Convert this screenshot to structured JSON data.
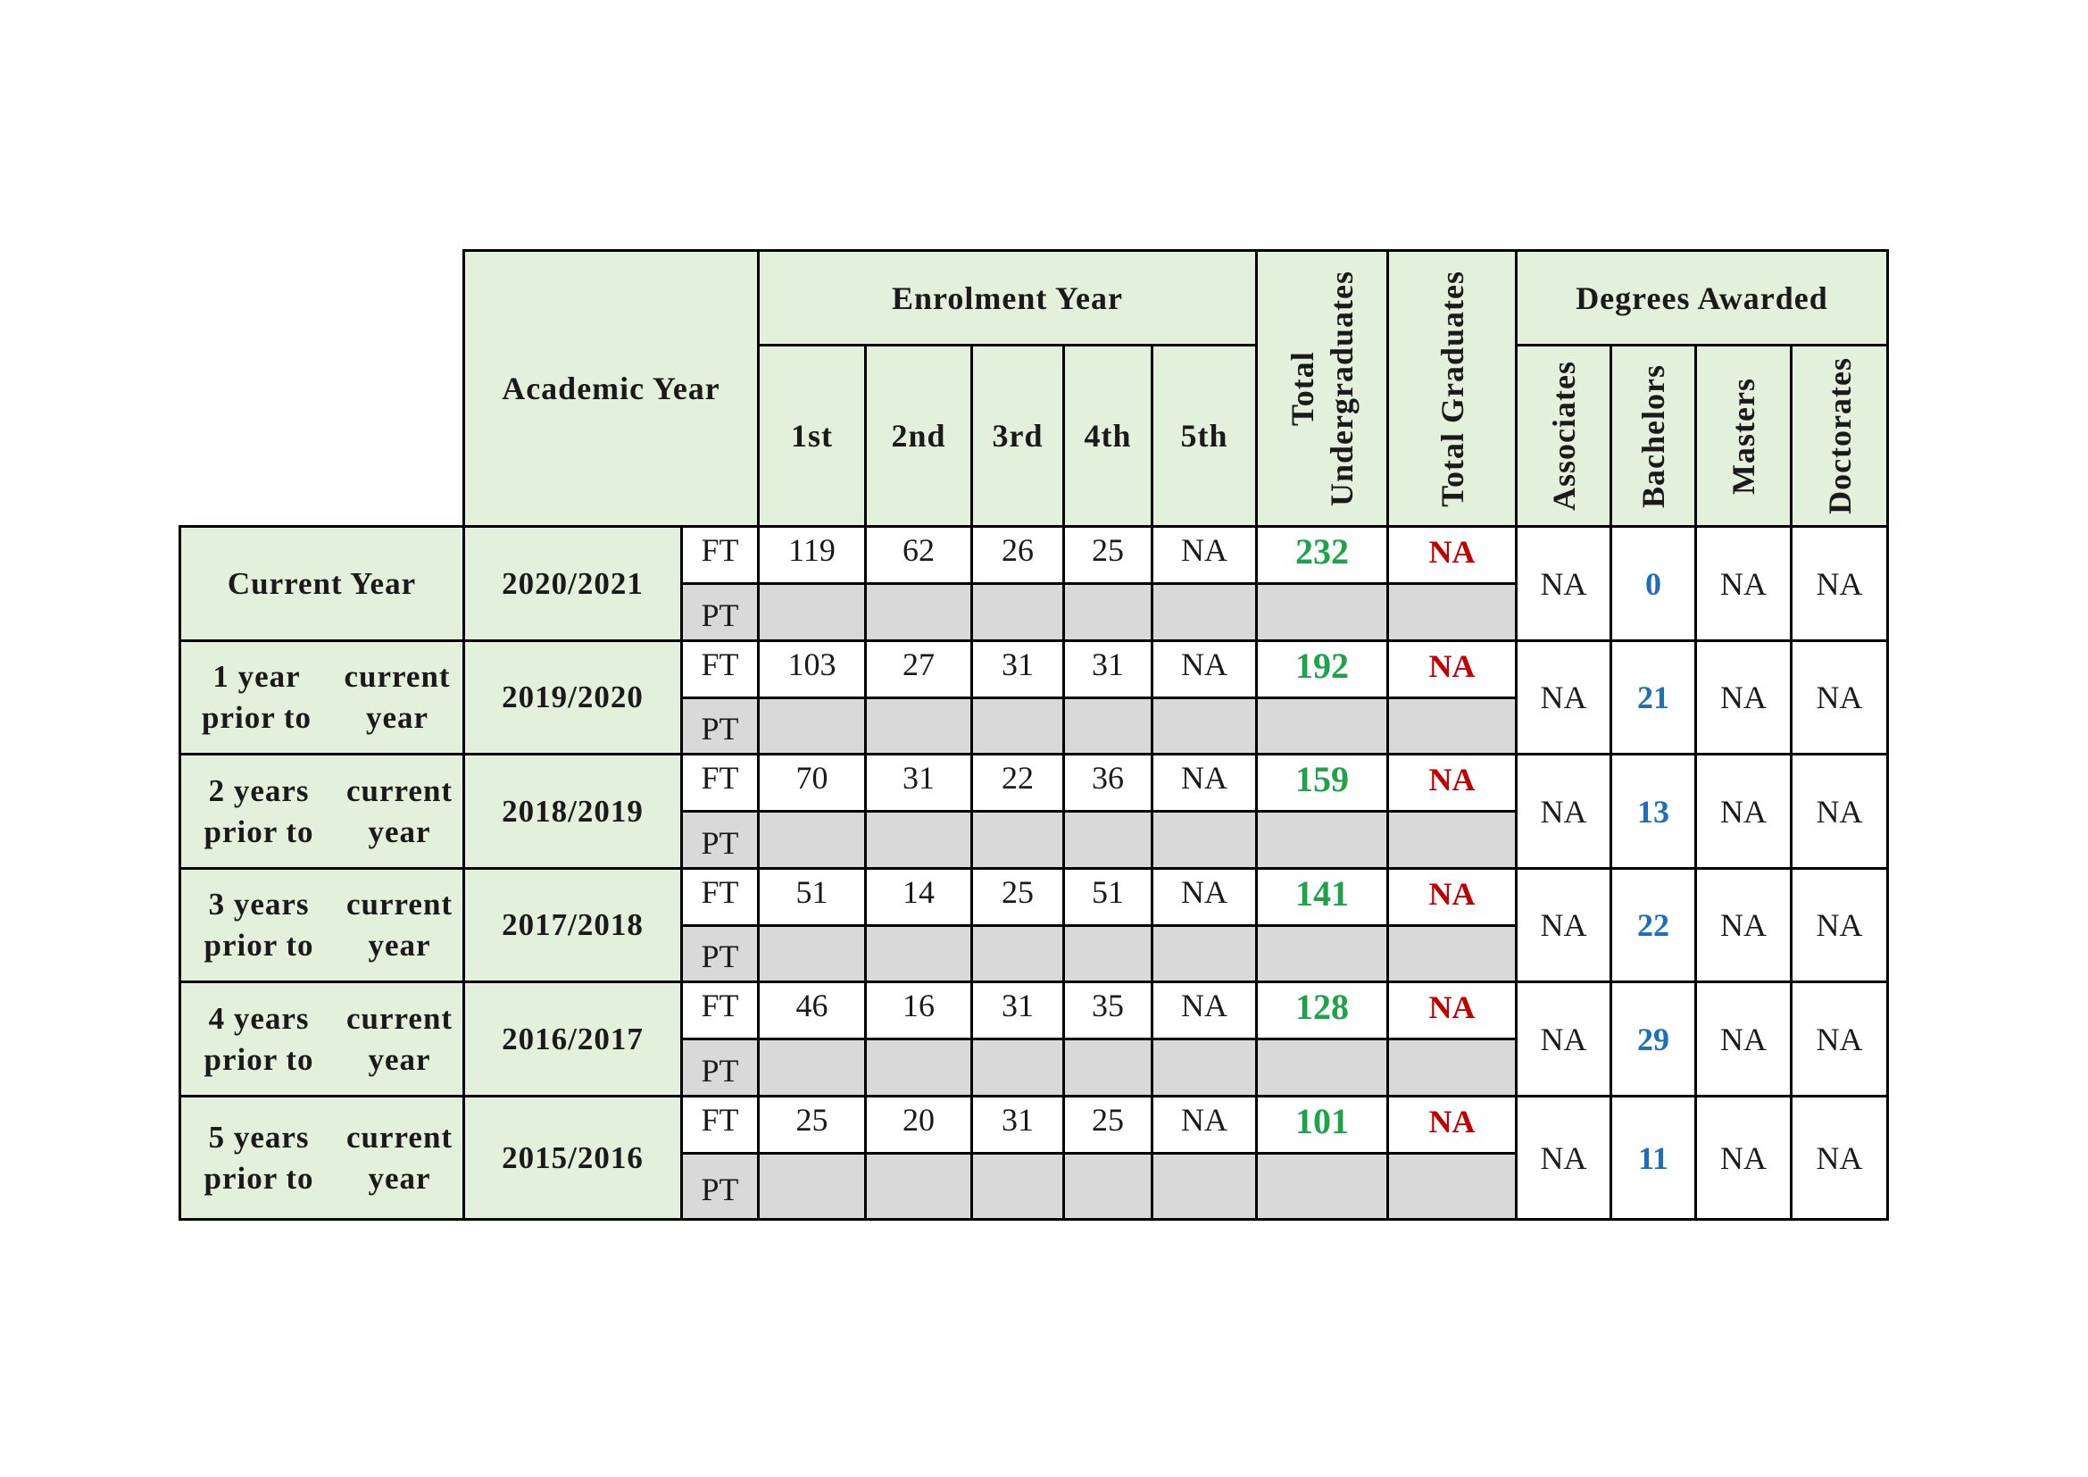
{
  "header": {
    "academic_year": "Academic Year",
    "enrolment_year": "Enrolment Year",
    "years": [
      "1st",
      "2nd",
      "3rd",
      "4th",
      "5th"
    ],
    "total_undergraduates_1": "Total",
    "total_undergraduates_2": "Undergraduates",
    "total_graduates": "Total Graduates",
    "degrees_awarded": "Degrees Awarded",
    "degrees": [
      "Associates",
      "Bachelors",
      "Masters",
      "Doctorates"
    ]
  },
  "rows": [
    {
      "label1": "Current Year",
      "label2": "",
      "year": "2020/2021",
      "ft_tag": "FT",
      "pt_tag": "PT",
      "ft": [
        "119",
        "62",
        "26",
        "25",
        "NA"
      ],
      "total_ug": "232",
      "total_grad": "NA",
      "degrees": [
        "NA",
        "0",
        "NA",
        "NA"
      ]
    },
    {
      "label1": "1 year prior to",
      "label2": "current year",
      "year": "2019/2020",
      "ft_tag": "FT",
      "pt_tag": "PT",
      "ft": [
        "103",
        "27",
        "31",
        "31",
        "NA"
      ],
      "total_ug": "192",
      "total_grad": "NA",
      "degrees": [
        "NA",
        "21",
        "NA",
        "NA"
      ]
    },
    {
      "label1": "2 years prior to",
      "label2": "current year",
      "year": "2018/2019",
      "ft_tag": "FT",
      "pt_tag": "PT",
      "ft": [
        "70",
        "31",
        "22",
        "36",
        "NA"
      ],
      "total_ug": "159",
      "total_grad": "NA",
      "degrees": [
        "NA",
        "13",
        "NA",
        "NA"
      ]
    },
    {
      "label1": "3 years prior to",
      "label2": "current year",
      "year": "2017/2018",
      "ft_tag": "FT",
      "pt_tag": "PT",
      "ft": [
        "51",
        "14",
        "25",
        "51",
        "NA"
      ],
      "total_ug": "141",
      "total_grad": "NA",
      "degrees": [
        "NA",
        "22",
        "NA",
        "NA"
      ]
    },
    {
      "label1": "4 years prior to",
      "label2": "current year",
      "year": "2016/2017",
      "ft_tag": "FT",
      "pt_tag": "PT",
      "ft": [
        "46",
        "16",
        "31",
        "35",
        "NA"
      ],
      "total_ug": "128",
      "total_grad": "NA",
      "degrees": [
        "NA",
        "29",
        "NA",
        "NA"
      ]
    },
    {
      "label1": "5 years prior to",
      "label2": "current year",
      "year": "2015/2016",
      "ft_tag": "FT",
      "pt_tag": "PT",
      "ft": [
        "25",
        "20",
        "31",
        "25",
        "NA"
      ],
      "total_ug": "101",
      "total_grad": "NA",
      "degrees": [
        "NA",
        "11",
        "NA",
        "NA"
      ]
    }
  ],
  "colors": {
    "header_bg": "#e3f0dc",
    "pt_bg": "#d9d9d9",
    "total_undergraduates": "#1fa34a",
    "total_graduates": "#c00000",
    "bachelors": "#1f6fb8"
  }
}
